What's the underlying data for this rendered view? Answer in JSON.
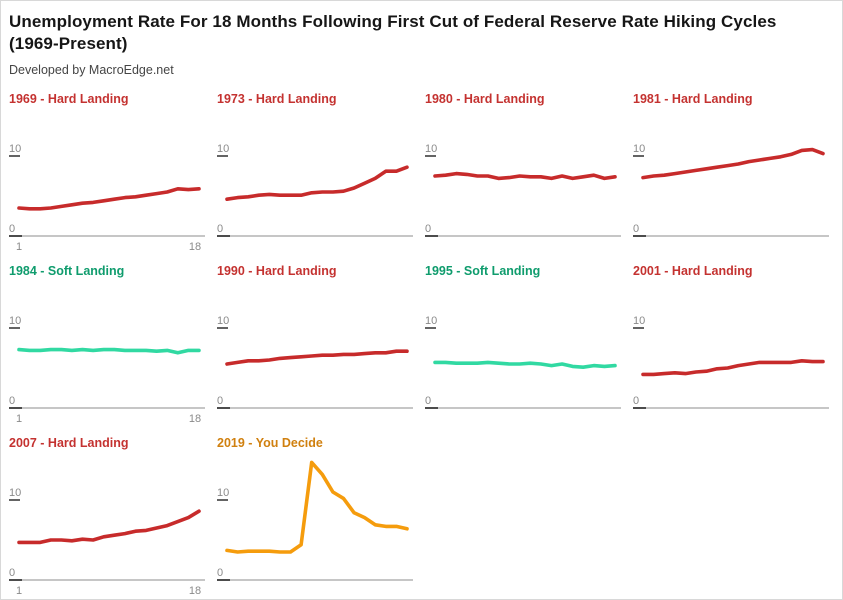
{
  "header": {
    "title": "Unemployment Rate For 18 Months Following First Cut of Federal Reserve Rate Hiking Cycles (1969-Present)",
    "subtitle": "Developed by MacroEdge.net"
  },
  "colors": {
    "title_text": "#161616",
    "subtitle_text": "#454545",
    "axis_label": "#8a8a8a",
    "axis_line_light": "#b3b3b3",
    "axis_tick_dark": "#3d3d3d",
    "background": "#ffffff",
    "border": "#d8d8d8"
  },
  "chart_data": {
    "type": "line",
    "title": "Unemployment Rate For 18 Months Following First Cut of Federal Reserve Rate Hiking Cycles (1969-Present)",
    "subtitle": "Developed by MacroEdge.net",
    "xlabel": "",
    "ylabel": "",
    "x": [
      1,
      2,
      3,
      4,
      5,
      6,
      7,
      8,
      9,
      10,
      11,
      12,
      13,
      14,
      15,
      16,
      17,
      18
    ],
    "x_tick_labels": [
      "1",
      "18"
    ],
    "y_tick_labels": [
      "10",
      "0"
    ],
    "y_ticks": [
      10,
      0
    ],
    "ylim": [
      0,
      10
    ],
    "grid": false,
    "legend": "none",
    "layout": {
      "columns": 4,
      "x_labels_first_column_only": true
    },
    "outcomes": {
      "hard": {
        "title_color": "#c43230",
        "line_color": "#c72b2b"
      },
      "soft": {
        "title_color": "#0f9c6d",
        "line_color": "#31d9a2"
      },
      "decide": {
        "title_color": "#d0800f",
        "line_color": "#f59c0d"
      }
    },
    "facets": [
      {
        "label": "1969 - Hard Landing",
        "outcome": "hard",
        "values": [
          3.5,
          3.4,
          3.4,
          3.5,
          3.7,
          3.9,
          4.1,
          4.2,
          4.4,
          4.6,
          4.8,
          4.9,
          5.1,
          5.3,
          5.5,
          5.9,
          5.8,
          5.9
        ]
      },
      {
        "label": "1973 - Hard Landing",
        "outcome": "hard",
        "values": [
          4.6,
          4.8,
          4.9,
          5.1,
          5.2,
          5.1,
          5.1,
          5.1,
          5.4,
          5.5,
          5.5,
          5.6,
          6.0,
          6.6,
          7.2,
          8.1,
          8.1,
          8.6
        ]
      },
      {
        "label": "1980 - Hard Landing",
        "outcome": "hard",
        "values": [
          7.5,
          7.6,
          7.8,
          7.7,
          7.5,
          7.5,
          7.2,
          7.3,
          7.5,
          7.4,
          7.4,
          7.2,
          7.5,
          7.2,
          7.4,
          7.6,
          7.2,
          7.4
        ]
      },
      {
        "label": "1981 - Hard Landing",
        "outcome": "hard",
        "values": [
          7.3,
          7.5,
          7.6,
          7.8,
          8.0,
          8.2,
          8.4,
          8.6,
          8.8,
          9.0,
          9.3,
          9.5,
          9.7,
          9.9,
          10.2,
          10.7,
          10.8,
          10.3
        ]
      },
      {
        "label": "1984 - Soft Landing",
        "outcome": "soft",
        "values": [
          7.3,
          7.2,
          7.2,
          7.3,
          7.3,
          7.2,
          7.3,
          7.2,
          7.3,
          7.3,
          7.2,
          7.2,
          7.2,
          7.1,
          7.2,
          6.9,
          7.2,
          7.2
        ]
      },
      {
        "label": "1990 - Hard Landing",
        "outcome": "hard",
        "values": [
          5.5,
          5.7,
          5.9,
          5.9,
          6.0,
          6.2,
          6.3,
          6.4,
          6.5,
          6.6,
          6.6,
          6.7,
          6.7,
          6.8,
          6.9,
          6.9,
          7.1,
          7.1
        ]
      },
      {
        "label": "1995 - Soft Landing",
        "outcome": "soft",
        "values": [
          5.7,
          5.7,
          5.6,
          5.6,
          5.6,
          5.7,
          5.6,
          5.5,
          5.5,
          5.6,
          5.5,
          5.3,
          5.5,
          5.2,
          5.1,
          5.3,
          5.2,
          5.3
        ]
      },
      {
        "label": "2001 - Hard Landing",
        "outcome": "hard",
        "values": [
          4.2,
          4.2,
          4.3,
          4.4,
          4.3,
          4.5,
          4.6,
          4.9,
          5.0,
          5.3,
          5.5,
          5.7,
          5.7,
          5.7,
          5.7,
          5.9,
          5.8,
          5.8
        ]
      },
      {
        "label": "2007 - Hard Landing",
        "outcome": "hard",
        "values": [
          4.7,
          4.7,
          4.7,
          5.0,
          5.0,
          4.9,
          5.1,
          5.0,
          5.4,
          5.6,
          5.8,
          6.1,
          6.2,
          6.5,
          6.8,
          7.3,
          7.8,
          8.6
        ]
      },
      {
        "label": "2019 - You Decide",
        "outcome": "decide",
        "values": [
          3.7,
          3.5,
          3.6,
          3.6,
          3.6,
          3.5,
          3.5,
          4.4,
          14.7,
          13.2,
          11.0,
          10.2,
          8.4,
          7.8,
          6.9,
          6.7,
          6.7,
          6.4
        ]
      }
    ]
  }
}
